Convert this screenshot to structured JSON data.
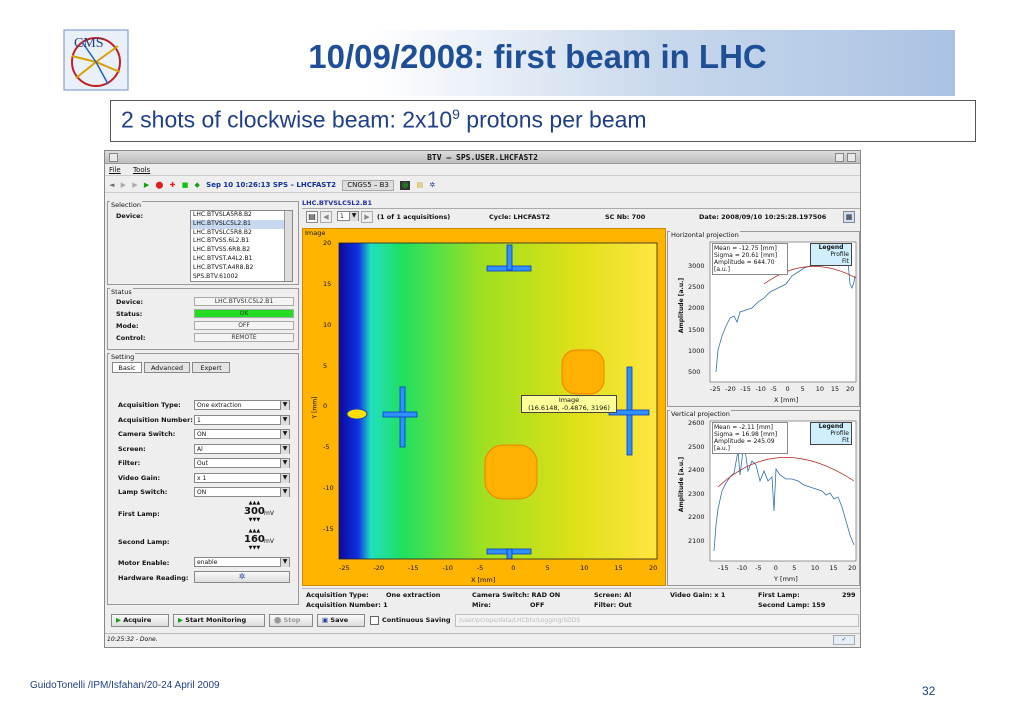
{
  "slide": {
    "title": "10/09/2008: first beam in LHC",
    "subtitle_main": "2 shots of clockwise beam: 2x10",
    "subtitle_exp": "9",
    "subtitle_rest": " protons per beam",
    "logo_text": "CMS",
    "footer": "GuidoTonelli /IPM/Isfahan/20-24 April 2009",
    "page": "32"
  },
  "window": {
    "title": "BTV – SPS.USER.LHCFAST2",
    "menu": [
      "File",
      "Tools"
    ],
    "toolbar_time": "Sep 10 10:26:13  SPS – LHCFAST2",
    "toolbar_tag": "CNGS5 – B3"
  },
  "selection": {
    "title": "Selection",
    "device_label": "Device:",
    "devices": [
      "LHC.BTVSLA5R8.B2",
      "LHC.BTVSLC5L2.B1",
      "LHC.BTVSLC5R8.B2",
      "LHC.BTVSS.6L2.B1",
      "LHC.BTVSS.6R8.B2",
      "LHC.BTVST.A4L2.B1",
      "LHC.BTVST.A4R8.B2",
      "SPS.BTV.61002"
    ],
    "selected_index": 1
  },
  "status": {
    "title": "Status",
    "rows": [
      {
        "label": "Device:",
        "value": "LHC.BTVSI.C5L2.B1",
        "color": "#f4f4f4"
      },
      {
        "label": "Status:",
        "value": "OK",
        "color": "#22dd22"
      },
      {
        "label": "Mode:",
        "value": "OFF",
        "color": "#f4f4f4"
      },
      {
        "label": "Control:",
        "value": "REMOTE",
        "color": "#f4f4f4"
      }
    ]
  },
  "setting": {
    "title": "Setting",
    "tabs": [
      "Basic",
      "Advanced",
      "Expert"
    ],
    "rows": [
      {
        "label": "Acquisition Type:",
        "value": "One extraction"
      },
      {
        "label": "Acquisition Number:",
        "value": "1"
      },
      {
        "label": "Camera Switch:",
        "value": "ON"
      },
      {
        "label": "Screen:",
        "value": "Al"
      },
      {
        "label": "Filter:",
        "value": "Out"
      },
      {
        "label": "Video Gain:",
        "value": "x 1"
      },
      {
        "label": "Lamp Switch:",
        "value": "ON"
      }
    ],
    "first_lamp_label": "First Lamp:",
    "first_lamp_value": "300",
    "second_lamp_label": "Second Lamp:",
    "second_lamp_value": "160",
    "lamp_unit": "mV",
    "motor_label": "Motor Enable:",
    "motor_value": "enable",
    "hw_label": "Hardware Reading:"
  },
  "device_view": {
    "title": "LHC.BTVSLC5L2.B1",
    "page_value": "1",
    "acq_text": "(1 of 1 acquisitions)",
    "cycle": "Cycle: LHCFAST2",
    "sc": "SC Nb: 700",
    "date": "Date:  2008/09/10 10:25:28.197506"
  },
  "image_panel": {
    "title": "Image",
    "xlabel": "X [mm]",
    "ylabel": "Y [mm]",
    "xticks": [
      "-25",
      "-20",
      "-15",
      "-10",
      "-5",
      "0",
      "5",
      "10",
      "15",
      "20"
    ],
    "yticks": [
      "20",
      "15",
      "10",
      "5",
      "0",
      "-5",
      "-10",
      "-15"
    ],
    "tooltip_title": "Image",
    "tooltip_value": "(16.6148, -0.4876, 3196)"
  },
  "h_proj": {
    "title": "Horizontal projection",
    "stats": [
      "Mean = -12.75 [mm]",
      "Sigma = 20.61 [mm]",
      "Amplitude = 644.70 [a.u.]"
    ],
    "legend": [
      "Legend",
      "Profile",
      "Fit"
    ],
    "ylabel": "Amplitude [a.u.]",
    "xlabel": "X [mm]",
    "yticks": [
      "3000",
      "2500",
      "2000",
      "1500",
      "1000",
      "500"
    ],
    "xticks": [
      "-25",
      "-20",
      "-15",
      "-10",
      "-5",
      "0",
      "5",
      "10",
      "15",
      "20"
    ]
  },
  "v_proj": {
    "title": "Vertical projection",
    "stats": [
      "Mean = -2.11 [mm]",
      "Sigma = 16.98 [mm]",
      "Amplitude = 245.09 [a.u.]"
    ],
    "legend": [
      "Legend",
      "Profile",
      "Fit"
    ],
    "ylabel": "Amplitude [a.u.]",
    "xlabel": "Y [mm]",
    "yticks": [
      "2600",
      "2500",
      "2400",
      "2300",
      "2200",
      "2100"
    ],
    "xticks": [
      "-15",
      "-10",
      "-5",
      "0",
      "5",
      "10",
      "15",
      "20"
    ]
  },
  "info": [
    [
      "Acquisition Type:",
      "One extraction",
      "Camera Switch: RAD ON",
      "Screen: Al",
      "Video Gain: x 1",
      "First Lamp:",
      "299"
    ],
    [
      "Acquisition Number: 1",
      "",
      "Mire:",
      "OFF",
      "Filter:  Out",
      "",
      "Second Lamp: 159"
    ]
  ],
  "buttons": {
    "acquire": "Acquire",
    "monitor": "Start Monitoring",
    "stop": "Stop",
    "save": "Save",
    "continuous": "Continuous Saving",
    "path": "/user/pcrops/data/LHCbtv/Logging/SDDS"
  },
  "statusbar": "10:25:32 - Done.",
  "colors": {
    "accent": "#1f4f96",
    "ok": "#22dd22",
    "plot_bg": "#ffb400"
  }
}
